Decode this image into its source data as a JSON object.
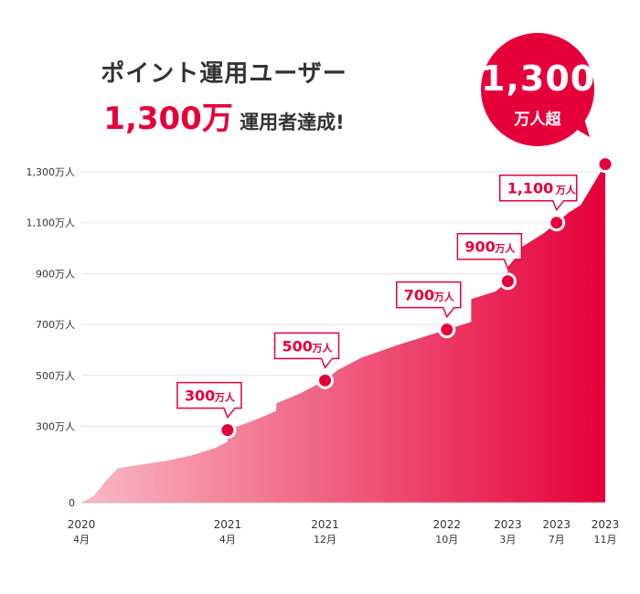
{
  "heading": {
    "line1": "ポイント運用ユーザー",
    "line2_value": "1,300万",
    "line2_rest": "運用者達成!"
  },
  "badge": {
    "value": "1,300",
    "unit": "万人超"
  },
  "colors": {
    "accent": "#e5003a",
    "area_start": "#f9b9c3",
    "area_end": "#e5003a",
    "grid": "#e3e3e3"
  },
  "chart_data": {
    "type": "area",
    "ylim": [
      0,
      1300
    ],
    "yticks": [
      {
        "value": 0,
        "label": "0"
      },
      {
        "value": 300,
        "label": "300万人"
      },
      {
        "value": 500,
        "label": "500万人"
      },
      {
        "value": 700,
        "label": "700万人"
      },
      {
        "value": 900,
        "label": "900万人"
      },
      {
        "value": 1100,
        "label": "1,100万人"
      },
      {
        "value": 1300,
        "label": "1,300万人"
      }
    ],
    "xticks": [
      {
        "x": "2020-04",
        "year": "2020",
        "month": "4月"
      },
      {
        "x": "2021-04",
        "year": "2021",
        "month": "4月"
      },
      {
        "x": "2021-12",
        "year": "2021",
        "month": "12月"
      },
      {
        "x": "2022-10",
        "year": "2022",
        "month": "10月"
      },
      {
        "x": "2023-03",
        "year": "2023",
        "month": "3月"
      },
      {
        "x": "2023-07",
        "year": "2023",
        "month": "7月"
      },
      {
        "x": "2023-11",
        "year": "2023",
        "month": "11月"
      }
    ],
    "series": [
      {
        "points": [
          [
            "2020-04",
            0
          ],
          [
            "2020-05",
            25
          ],
          [
            "2020-06",
            85
          ],
          [
            "2020-07",
            135
          ],
          [
            "2020-09",
            150
          ],
          [
            "2020-11",
            165
          ],
          [
            "2021-01",
            185
          ],
          [
            "2021-03",
            215
          ],
          [
            "2021-04",
            240
          ],
          [
            "2021-04",
            285
          ],
          [
            "2021-06",
            320
          ],
          [
            "2021-08",
            360
          ],
          [
            "2021-08",
            390
          ],
          [
            "2021-10",
            430
          ],
          [
            "2021-12",
            480
          ],
          [
            "2022-01",
            520
          ],
          [
            "2022-03",
            570
          ],
          [
            "2022-06",
            620
          ],
          [
            "2022-10",
            680
          ],
          [
            "2022-12",
            710
          ],
          [
            "2022-12",
            800
          ],
          [
            "2023-02",
            830
          ],
          [
            "2023-03",
            870
          ],
          [
            "2023-03",
            930
          ],
          [
            "2023-04",
            1000
          ],
          [
            "2023-05",
            1030
          ],
          [
            "2023-06",
            1060
          ],
          [
            "2023-07",
            1100
          ],
          [
            "2023-08",
            1140
          ],
          [
            "2023-09",
            1170
          ],
          [
            "2023-10",
            1250
          ],
          [
            "2023-11",
            1330
          ]
        ]
      }
    ],
    "milestones": [
      {
        "x": "2021-04",
        "y": 285,
        "value": "300",
        "unit": "万人"
      },
      {
        "x": "2021-12",
        "y": 480,
        "value": "500",
        "unit": "万人"
      },
      {
        "x": "2022-10",
        "y": 680,
        "value": "700",
        "unit": "万人"
      },
      {
        "x": "2023-03",
        "y": 870,
        "value": "900",
        "unit": "万人"
      },
      {
        "x": "2023-07",
        "y": 1100,
        "value": "1,100",
        "unit": "万人"
      },
      {
        "x": "2023-11",
        "y": 1330
      }
    ]
  }
}
